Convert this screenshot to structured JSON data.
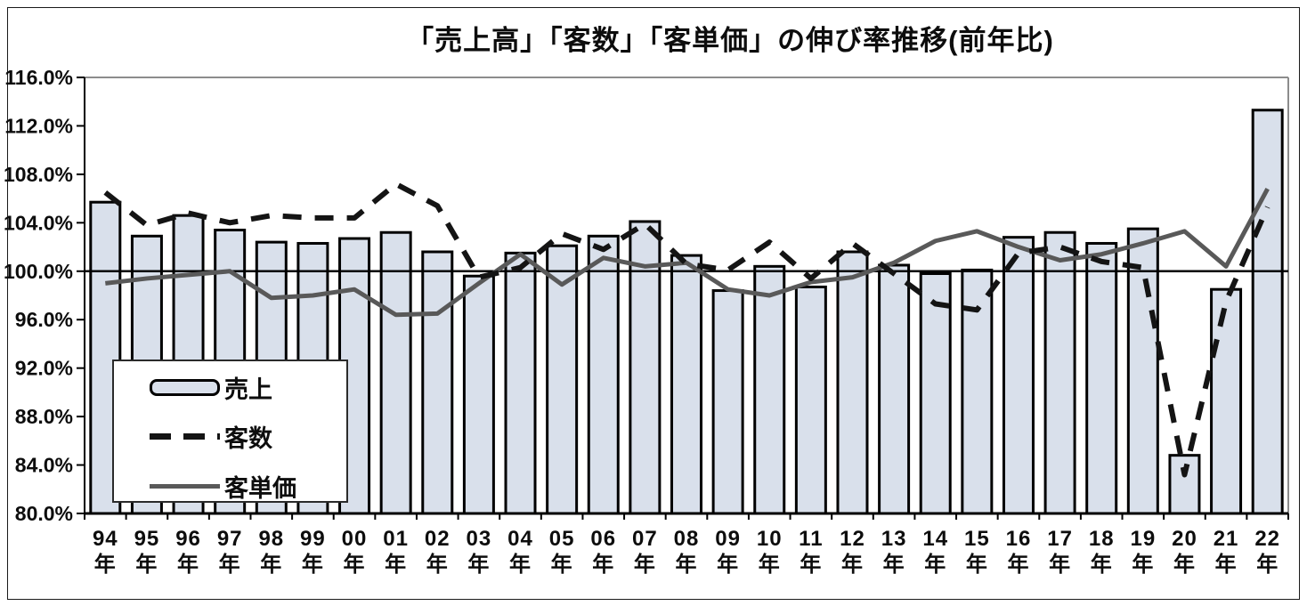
{
  "colors": {
    "bar_fill": "#d9e0eb",
    "bar_border": "#000000",
    "customers_line": "#141414",
    "unit_price_line": "#595959",
    "plot_border": "#8c8c8c",
    "baseline_line": "#000000"
  },
  "chart_data": {
    "type": "bar+line combo",
    "title": "「売上高」「客数」「客単価」の伸び率推移(前年比)",
    "xlabel": "",
    "ylabel": "",
    "categories": [
      "94",
      "95",
      "96",
      "97",
      "98",
      "99",
      "00",
      "01",
      "02",
      "03",
      "04",
      "05",
      "06",
      "07",
      "08",
      "09",
      "10",
      "11",
      "12",
      "13",
      "14",
      "15",
      "16",
      "17",
      "18",
      "19",
      "20",
      "21",
      "22"
    ],
    "category_suffix": "年",
    "series": [
      {
        "name": "売上",
        "type": "bar",
        "values": [
          105.7,
          102.9,
          104.6,
          103.4,
          102.4,
          102.3,
          102.7,
          103.2,
          101.6,
          99.6,
          101.5,
          102.1,
          102.9,
          104.1,
          101.3,
          98.4,
          100.4,
          98.7,
          101.6,
          100.5,
          99.8,
          100.1,
          102.8,
          103.2,
          102.3,
          103.5,
          84.8,
          98.5,
          113.3
        ]
      },
      {
        "name": "客数",
        "type": "line",
        "style": "dashed",
        "values": [
          106.5,
          103.8,
          104.8,
          104.0,
          104.6,
          104.4,
          104.4,
          107.2,
          105.4,
          99.5,
          100.3,
          103.1,
          101.8,
          103.9,
          100.6,
          100.1,
          102.4,
          99.4,
          102.3,
          99.8,
          97.3,
          96.8,
          101.5,
          102.0,
          100.8,
          100.3,
          83.2,
          97.5,
          105.3
        ]
      },
      {
        "name": "客単価",
        "type": "line",
        "style": "solid",
        "values": [
          99.0,
          99.4,
          99.7,
          100.0,
          97.8,
          98.0,
          98.5,
          96.4,
          96.5,
          99.0,
          101.4,
          98.9,
          101.1,
          100.4,
          100.7,
          98.5,
          98.0,
          99.1,
          99.5,
          100.7,
          102.5,
          103.3,
          102.0,
          100.9,
          101.4,
          102.3,
          103.3,
          100.4,
          106.8
        ]
      }
    ],
    "ylim": [
      80,
      116
    ],
    "ytick_step": 4,
    "ytick_labels": [
      "116.0%",
      "112.0%",
      "108.0%",
      "104.0%",
      "100.0%",
      "96.0%",
      "92.0%",
      "88.0%",
      "84.0%",
      "80.0%"
    ],
    "baseline": 100,
    "grid": false,
    "legend_position": "inside-bottom-left"
  }
}
